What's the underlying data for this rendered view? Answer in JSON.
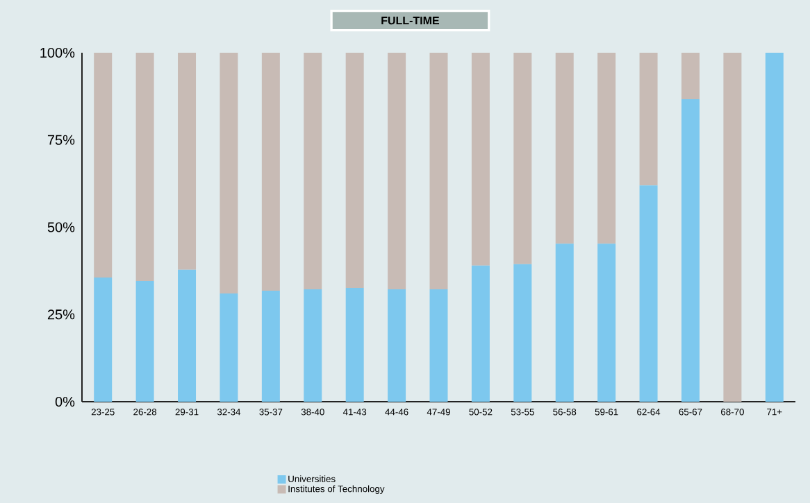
{
  "chart_data": {
    "type": "bar",
    "title": "FULL-TIME",
    "stacked": true,
    "categories": [
      "23-25",
      "26-28",
      "29-31",
      "32-34",
      "35-37",
      "38-40",
      "41-43",
      "44-46",
      "47-49",
      "50-52",
      "53-55",
      "56-58",
      "59-61",
      "62-64",
      "65-67",
      "68-70",
      "71+"
    ],
    "series": [
      {
        "name": "Universities",
        "color": "#7dc8ee",
        "values": [
          35.6,
          34.6,
          37.8,
          31,
          31.8,
          32.2,
          32.6,
          32.2,
          32.2,
          39,
          39.4,
          45.3,
          45.3,
          62,
          86.7,
          0,
          100
        ]
      },
      {
        "name": "Institutes of Technology",
        "color": "#c8bbb5",
        "values": [
          64.4,
          65.4,
          62.2,
          69,
          68.2,
          67.8,
          67.4,
          67.8,
          67.8,
          61,
          60.6,
          54.7,
          54.7,
          38,
          13.3,
          100,
          0
        ]
      }
    ],
    "ylim": [
      0,
      100
    ],
    "yticks": [
      {
        "value": 0,
        "label": "0%"
      },
      {
        "value": 25,
        "label": "25%"
      },
      {
        "value": 50,
        "label": "50%"
      },
      {
        "value": 75,
        "label": "75%"
      },
      {
        "value": 100,
        "label": "100%"
      }
    ],
    "grid": false,
    "legend": "bottom"
  }
}
